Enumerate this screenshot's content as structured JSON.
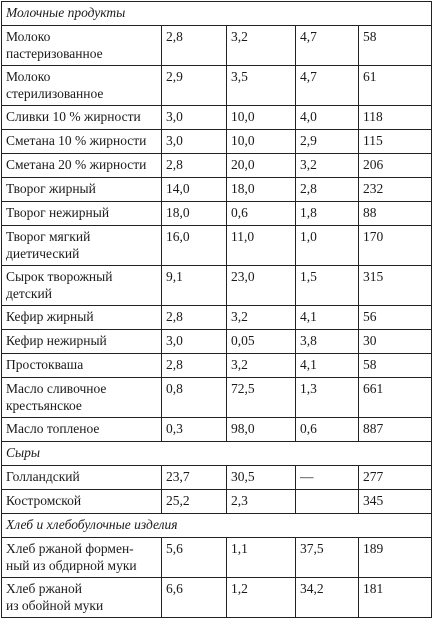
{
  "rows": [
    {
      "section": "Молочные продукты"
    },
    {
      "name": "Молоко пастеризованное",
      "v": [
        "2,8",
        "3,2",
        "4,7",
        "58"
      ],
      "h": 39
    },
    {
      "name": "Молоко стерилизованное",
      "v": [
        "2,9",
        "3,5",
        "4,7",
        "61"
      ],
      "h": 38
    },
    {
      "name": "Сливки 10 % жирности",
      "v": [
        "3,0",
        "10,0",
        "4,0",
        "118"
      ],
      "h": 24
    },
    {
      "name": "Сметана 10 % жирности",
      "v": [
        "3,0",
        "10,0",
        "2,9",
        "115"
      ],
      "h": 24
    },
    {
      "name": "Сметана 20 % жирности",
      "v": [
        "2,8",
        "20,0",
        "3,2",
        "206"
      ],
      "h": 24
    },
    {
      "name": "Творог жирный",
      "v": [
        "14,0",
        "18,0",
        "2,8",
        "232"
      ],
      "h": 24
    },
    {
      "name": "Творог нежирный",
      "v": [
        "18,0",
        "0,6",
        "1,8",
        "88"
      ],
      "h": 24
    },
    {
      "name": "Творог мягкий диетический",
      "v": [
        "16,0",
        "11,0",
        "1,0",
        "170"
      ],
      "h": 40
    },
    {
      "name": "Сырок творожный детский",
      "v": [
        "9,1",
        "23,0",
        "1,5",
        "315"
      ],
      "h": 40
    },
    {
      "name": "Кефир жирный",
      "v": [
        "2,8",
        "3,2",
        "4,1",
        "56"
      ],
      "h": 24
    },
    {
      "name": "Кефир нежирный",
      "v": [
        "3,0",
        "0,05",
        "3,8",
        "30"
      ],
      "h": 24
    },
    {
      "name": "Простокваша",
      "v": [
        "2,8",
        "3,2",
        "4,1",
        "58"
      ],
      "h": 24
    },
    {
      "name": "Масло сливочное крестьянское",
      "v": [
        "0,8",
        "72,5",
        "1,3",
        "661"
      ],
      "h": 40
    },
    {
      "name": "Масло топленое",
      "v": [
        "0,3",
        "98,0",
        "0,6",
        "887"
      ],
      "h": 24
    },
    {
      "section": "Сыры"
    },
    {
      "name": "Голландский",
      "v": [
        "23,7",
        "30,5",
        "—",
        "277"
      ],
      "h": 24
    },
    {
      "name": "Костромской",
      "v": [
        "25,2",
        "2,3",
        "",
        "345"
      ],
      "h": 24
    },
    {
      "section": "Хлеб и хлебобулочные изделия"
    },
    {
      "name": "Хлеб ржаной формен-ный из обдирной муки",
      "v": [
        "5,6",
        "1,1",
        "37,5",
        "189"
      ],
      "h": 40
    },
    {
      "name": "Хлеб ржаной из обойной муки",
      "v": [
        "6,6",
        "1,2",
        "34,2",
        "181"
      ],
      "h": 40
    }
  ]
}
